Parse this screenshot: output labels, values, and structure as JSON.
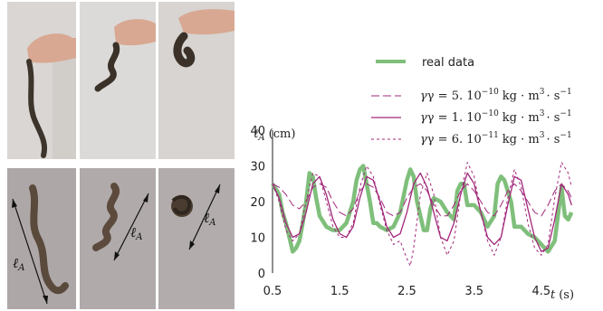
{
  "photos": {
    "top_row_count": 3,
    "bottom_row_count": 3,
    "length_label": "ℓ_A",
    "length_label_sub": "A",
    "length_label_main": "ℓ"
  },
  "chart_data": {
    "type": "line",
    "title": "",
    "xlabel": "t (s)",
    "xlabel_main": "t",
    "xlabel_unit": "(s)",
    "ylabel": "ℓ_A (cm)",
    "ylabel_main": "ℓ",
    "ylabel_sub": "A",
    "ylabel_unit": "(cm)",
    "xlim": [
      0.5,
      5.0
    ],
    "ylim": [
      0,
      40
    ],
    "xticks": [
      "0.5",
      "1.5",
      "2.5",
      "3.5",
      "4.5"
    ],
    "yticks": [
      "0",
      "10",
      "20",
      "30",
      "40"
    ],
    "legend_placement": "top-right",
    "colors": {
      "real": "#7fbf7b",
      "model": "#a2277a"
    },
    "series": [
      {
        "name": "real data",
        "style": "thick-solid",
        "x": [
          0.5,
          0.6,
          0.65,
          0.7,
          0.75,
          0.8,
          0.85,
          0.9,
          0.95,
          1.0,
          1.05,
          1.1,
          1.15,
          1.2,
          1.3,
          1.4,
          1.5,
          1.6,
          1.7,
          1.75,
          1.8,
          1.85,
          1.9,
          1.95,
          2.0,
          2.05,
          2.1,
          2.2,
          2.3,
          2.4,
          2.5,
          2.55,
          2.6,
          2.65,
          2.7,
          2.75,
          2.8,
          2.85,
          2.9,
          3.0,
          3.1,
          3.2,
          3.25,
          3.3,
          3.35,
          3.4,
          3.45,
          3.5,
          3.6,
          3.7,
          3.8,
          3.85,
          3.9,
          3.95,
          4.0,
          4.05,
          4.1,
          4.2,
          4.3,
          4.4,
          4.5,
          4.6,
          4.7,
          4.8,
          4.85,
          4.9,
          4.95
        ],
        "values": [
          25,
          22,
          17,
          14,
          10,
          6,
          7,
          9,
          14,
          20,
          28,
          27,
          21,
          16,
          13,
          12,
          12,
          14,
          20,
          26,
          29,
          30,
          25,
          20,
          14,
          14,
          13,
          12,
          13,
          17,
          26,
          29,
          27,
          20,
          16,
          12,
          12,
          18,
          21,
          20,
          17,
          15,
          23,
          25,
          25,
          19,
          19,
          19,
          17,
          13,
          16,
          25,
          27,
          26,
          23,
          20,
          13,
          13,
          11,
          10,
          8,
          6,
          9,
          24,
          16,
          15,
          17
        ]
      },
      {
        "name": "γ = 5.10⁻¹⁰ kg·m³·s⁻¹",
        "label_gamma": "γ = 5. 10",
        "label_exp": "−10",
        "label_unit": "kg · m",
        "label_unit_exp": "3",
        "label_unit_tail": "· s",
        "label_tail_exp": "−1",
        "style": "long-dash",
        "x": [
          0.5,
          0.6,
          0.7,
          0.8,
          0.9,
          1.0,
          1.1,
          1.2,
          1.3,
          1.4,
          1.5,
          1.6,
          1.7,
          1.8,
          1.9,
          2.0,
          2.1,
          2.2,
          2.3,
          2.4,
          2.5,
          2.6,
          2.7,
          2.8,
          2.9,
          3.0,
          3.1,
          3.2,
          3.3,
          3.4,
          3.5,
          3.6,
          3.7,
          3.8,
          3.9,
          4.0,
          4.1,
          4.2,
          4.3,
          4.4,
          4.5,
          4.6,
          4.7,
          4.8,
          4.9,
          4.95
        ],
        "values": [
          25,
          24,
          22,
          19,
          18,
          20,
          24,
          25,
          24,
          20,
          17,
          16,
          18,
          23,
          25,
          24,
          21,
          17,
          16,
          17,
          21,
          24,
          25,
          23,
          19,
          16,
          16,
          19,
          23,
          25,
          23,
          20,
          17,
          16,
          19,
          23,
          25,
          23,
          20,
          17,
          16,
          19,
          23,
          25,
          23,
          21
        ]
      },
      {
        "name": "γ = 1.10⁻¹⁰ kg·m³·s⁻¹",
        "label_gamma": "γ = 1. 10",
        "label_exp": "−10",
        "label_unit": "kg · m",
        "label_unit_exp": "3",
        "label_unit_tail": "· s",
        "label_tail_exp": "−1",
        "style": "solid",
        "x": [
          0.5,
          0.6,
          0.7,
          0.8,
          0.9,
          1.0,
          1.1,
          1.2,
          1.3,
          1.4,
          1.5,
          1.6,
          1.7,
          1.8,
          1.9,
          2.0,
          2.1,
          2.2,
          2.3,
          2.4,
          2.5,
          2.6,
          2.7,
          2.8,
          2.9,
          3.0,
          3.1,
          3.2,
          3.3,
          3.4,
          3.5,
          3.6,
          3.7,
          3.8,
          3.9,
          4.0,
          4.1,
          4.2,
          4.3,
          4.4,
          4.5,
          4.6,
          4.7,
          4.8,
          4.9,
          4.95
        ],
        "values": [
          25,
          21,
          14,
          10,
          11,
          17,
          25,
          27,
          22,
          15,
          11,
          10,
          13,
          21,
          27,
          26,
          20,
          13,
          10,
          11,
          17,
          25,
          28,
          24,
          17,
          10,
          9,
          14,
          22,
          28,
          25,
          17,
          10,
          8,
          10,
          19,
          27,
          26,
          18,
          10,
          6,
          7,
          15,
          25,
          22,
          19
        ]
      },
      {
        "name": "γ = 6.10⁻¹¹ kg·m³·s⁻¹",
        "label_gamma": "γ = 6. 10",
        "label_exp": "−11",
        "label_unit": "kg · m",
        "label_unit_exp": "3",
        "label_unit_tail": "· s",
        "label_tail_exp": "−1",
        "style": "short-dash",
        "x": [
          0.5,
          0.6,
          0.7,
          0.8,
          0.9,
          1.0,
          1.1,
          1.2,
          1.3,
          1.4,
          1.5,
          1.6,
          1.7,
          1.8,
          1.9,
          2.0,
          2.1,
          2.2,
          2.3,
          2.4,
          2.5,
          2.55,
          2.6,
          2.7,
          2.8,
          2.9,
          3.0,
          3.1,
          3.2,
          3.3,
          3.4,
          3.5,
          3.6,
          3.7,
          3.8,
          3.9,
          4.0,
          4.1,
          4.2,
          4.3,
          4.4,
          4.5,
          4.6,
          4.7,
          4.8,
          4.9,
          4.95
        ],
        "values": [
          25,
          20,
          12,
          9,
          11,
          20,
          28,
          27,
          20,
          13,
          10,
          10,
          14,
          24,
          30,
          27,
          19,
          12,
          8,
          9,
          4,
          2,
          7,
          22,
          28,
          22,
          10,
          5,
          9,
          22,
          31,
          27,
          17,
          9,
          5,
          10,
          21,
          29,
          24,
          14,
          7,
          5,
          8,
          21,
          31,
          28,
          24
        ]
      }
    ]
  }
}
